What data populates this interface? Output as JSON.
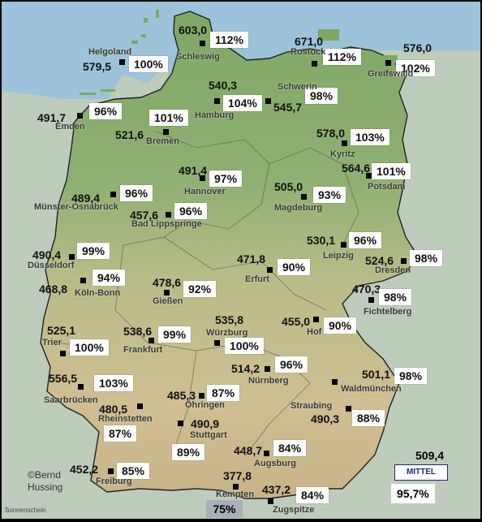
{
  "stations": [
    {
      "name": "Schleswig",
      "value": "603,0",
      "percent": "112%"
    },
    {
      "name": "Rostock",
      "value": "671,0",
      "percent": "112%"
    },
    {
      "name": "Greifswald",
      "value": "576,0",
      "percent": "102%"
    },
    {
      "name": "Helgoland",
      "value": "579,5",
      "percent": "100%"
    },
    {
      "name": "Hamburg",
      "value": "540,3",
      "percent": "104%"
    },
    {
      "name": "Schwerin",
      "value": "545,7",
      "percent": "98%"
    },
    {
      "name": "Emden",
      "value": "491,7",
      "percent": "96%"
    },
    {
      "name": "Bremen",
      "value": "521,6",
      "percent": "101%"
    },
    {
      "name": "Kyritz",
      "value": "578,0",
      "percent": "103%"
    },
    {
      "name": "Potsdam",
      "value": "564,6",
      "percent": "101%"
    },
    {
      "name": "Hannover",
      "value": "491,4",
      "percent": "97%"
    },
    {
      "name": "Münster-Osnabrück",
      "value": "489,4",
      "percent": "96%"
    },
    {
      "name": "Magdeburg",
      "value": "505,0",
      "percent": "93%"
    },
    {
      "name": "Bad Lippspringe",
      "value": "457,6",
      "percent": "96%"
    },
    {
      "name": "Leipzig",
      "value": "530,1",
      "percent": "96%"
    },
    {
      "name": "Dresden",
      "value": "524,6",
      "percent": "98%"
    },
    {
      "name": "Düsseldorf",
      "value": "490,4",
      "percent": "99%"
    },
    {
      "name": "Erfurt",
      "value": "471,8",
      "percent": "90%"
    },
    {
      "name": "Köln-Bonn",
      "value": "468,8",
      "percent": "94%"
    },
    {
      "name": "Gießen",
      "value": "478,6",
      "percent": "92%"
    },
    {
      "name": "Fichtelberg",
      "value": "470,3",
      "percent": "98%"
    },
    {
      "name": "Hof",
      "value": "455,0",
      "percent": "90%"
    },
    {
      "name": "Trier",
      "value": "525,1",
      "percent": "100%"
    },
    {
      "name": "Frankfurt",
      "value": "538,6",
      "percent": "99%"
    },
    {
      "name": "Würzburg",
      "value": "535,8",
      "percent": "100%"
    },
    {
      "name": "Nürnberg",
      "value": "514,2",
      "percent": "96%"
    },
    {
      "name": "Waldmünchen",
      "value": "501,1",
      "percent": "98%"
    },
    {
      "name": "Saarbrücken",
      "value": "556,5",
      "percent": "103%"
    },
    {
      "name": "Öhringen",
      "value": "485,3",
      "percent": "87%"
    },
    {
      "name": "Rheinstetten",
      "value": "480,5",
      "percent": "87%"
    },
    {
      "name": "Stuttgart",
      "value": "490,9",
      "percent": "89%"
    },
    {
      "name": "Straubing",
      "value": "490,3",
      "percent": "88%"
    },
    {
      "name": "Augsburg",
      "value": "448,7",
      "percent": "84%"
    },
    {
      "name": "Freiburg",
      "value": "452,2",
      "percent": "85%"
    },
    {
      "name": "Kempten",
      "value": "377,8",
      "percent": ""
    },
    {
      "name": "Zugspitze",
      "value": "437,2",
      "percent": "84%"
    }
  ],
  "alpen_percent": "75%",
  "mean": {
    "label": "MITTEL",
    "value": "509,4",
    "percent": "95,7%"
  },
  "credit": {
    "line1": "©Bernd",
    "line2": "Hussing"
  },
  "sunshine_label": "Sonnenschein",
  "colors": {
    "sea": "#9cc3d9",
    "lowland": "#93b07a",
    "highland": "#c8c498",
    "mountain": "#cfb98f",
    "legend": "#1a2a7a"
  }
}
